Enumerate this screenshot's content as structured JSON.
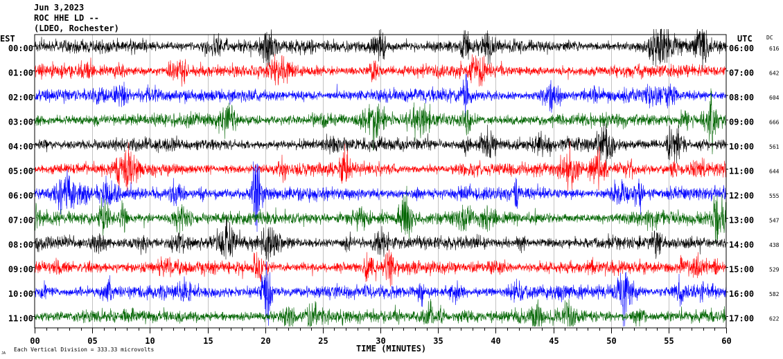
{
  "header": {
    "date": "Jun 3,2023",
    "station": "ROC HHE LD --",
    "location": "(LDEO, Rochester)"
  },
  "left_axis_title": "EST",
  "right_axis_title": "UTC",
  "dc_title": "DC",
  "footer": {
    "scale_note": "Each Vertical Division =  333.33 microvolts",
    "corner_mark": "JA"
  },
  "chart_data": {
    "type": "line",
    "title": "",
    "xlabel": "TIME (MINUTES)",
    "ylabel": "",
    "xlim": [
      0,
      60
    ],
    "x_ticks": [
      "00",
      "05",
      "10",
      "15",
      "20",
      "25",
      "30",
      "35",
      "40",
      "45",
      "50",
      "55",
      "60"
    ],
    "grid": true,
    "series_colors": [
      "#000000",
      "#ff0000",
      "#0000ff",
      "#006400"
    ],
    "rows": [
      {
        "est": "00:00",
        "utc": "06:00",
        "dc": "616",
        "color": "#000000"
      },
      {
        "est": "01:00",
        "utc": "07:00",
        "dc": "642",
        "color": "#ff0000"
      },
      {
        "est": "02:00",
        "utc": "08:00",
        "dc": "604",
        "color": "#0000ff"
      },
      {
        "est": "03:00",
        "utc": "09:00",
        "dc": "666",
        "color": "#006400"
      },
      {
        "est": "04:00",
        "utc": "10:00",
        "dc": "561",
        "color": "#000000"
      },
      {
        "est": "05:00",
        "utc": "11:00",
        "dc": "644",
        "color": "#ff0000"
      },
      {
        "est": "06:00",
        "utc": "12:00",
        "dc": "555",
        "color": "#0000ff"
      },
      {
        "est": "07:00",
        "utc": "13:00",
        "dc": "547",
        "color": "#006400"
      },
      {
        "est": "08:00",
        "utc": "14:00",
        "dc": "438",
        "color": "#000000"
      },
      {
        "est": "09:00",
        "utc": "15:00",
        "dc": "529",
        "color": "#ff0000"
      },
      {
        "est": "10:00",
        "utc": "16:00",
        "dc": "582",
        "color": "#0000ff"
      },
      {
        "est": "11:00",
        "utc": "17:00",
        "dc": "622",
        "color": "#006400"
      }
    ]
  }
}
